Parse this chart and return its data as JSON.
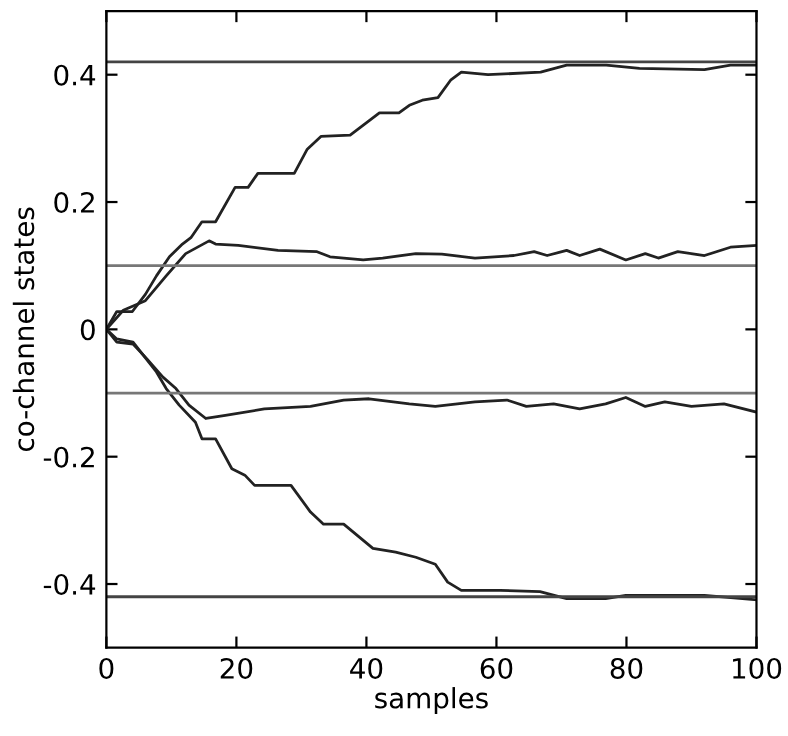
{
  "chart_data": {
    "type": "line",
    "xlabel": "samples",
    "ylabel": "co-channel states",
    "xlim": [
      0,
      100
    ],
    "ylim": [
      -0.5,
      0.5
    ],
    "xticks": [
      0,
      20,
      40,
      60,
      80,
      100
    ],
    "yticks": [
      {
        "value": -0.4,
        "label": "-0.4"
      },
      {
        "value": -0.2,
        "label": "-0.2"
      },
      0,
      0.2,
      0.4
    ],
    "grid": false,
    "legend": false,
    "marker": "none",
    "line_style": "solid",
    "series": [
      {
        "color": "#222222",
        "x": [
          0,
          1.6,
          4,
          6,
          7.7,
          9.7,
          11.7,
          13,
          14.7,
          16.8,
          19.8,
          21.8,
          23.3,
          28.9,
          30.9,
          33,
          37.5,
          42,
          45,
          46.6,
          48.6,
          51,
          53,
          54.6,
          58.7,
          66.8,
          70.8,
          76.9,
          82,
          92,
          96,
          100
        ],
        "values": [
          0,
          0.028,
          0.028,
          0.055,
          0.084,
          0.114,
          0.134,
          0.144,
          0.169,
          0.169,
          0.223,
          0.223,
          0.245,
          0.245,
          0.283,
          0.303,
          0.305,
          0.34,
          0.34,
          0.352,
          0.36,
          0.364,
          0.392,
          0.404,
          0.4,
          0.404,
          0.415,
          0.415,
          0.41,
          0.408,
          0.415,
          0.415
        ]
      },
      {
        "color": "#222222",
        "x": [
          0,
          2.6,
          6,
          9.2,
          12.2,
          15.8,
          16.8,
          20.3,
          26.4,
          32.4,
          34.4,
          39.5,
          42.5,
          47.6,
          51.6,
          56.7,
          62.7,
          65.8,
          67.8,
          70.8,
          72.8,
          75.9,
          79.9,
          82.9,
          84.9,
          87.9,
          92,
          96,
          100
        ],
        "values": [
          0,
          0.03,
          0.045,
          0.084,
          0.119,
          0.139,
          0.134,
          0.132,
          0.124,
          0.122,
          0.114,
          0.109,
          0.112,
          0.119,
          0.118,
          0.112,
          0.116,
          0.122,
          0.116,
          0.124,
          0.116,
          0.126,
          0.109,
          0.119,
          0.112,
          0.122,
          0.116,
          0.129,
          0.132
        ]
      },
      {
        "color": "#222222",
        "x": [
          0,
          1.6,
          4.1,
          6.2,
          8.7,
          10.7,
          12.7,
          15.3,
          18.3,
          24.3,
          31.4,
          36.5,
          40.4,
          46.6,
          50.6,
          56.7,
          61.6,
          64.6,
          68.8,
          72.8,
          76.8,
          79.9,
          82.9,
          85.9,
          90,
          95,
          100
        ],
        "values": [
          0,
          -0.02,
          -0.023,
          -0.046,
          -0.075,
          -0.093,
          -0.119,
          -0.14,
          -0.135,
          -0.125,
          -0.121,
          -0.111,
          -0.109,
          -0.117,
          -0.121,
          -0.114,
          -0.111,
          -0.121,
          -0.117,
          -0.125,
          -0.117,
          -0.107,
          -0.121,
          -0.114,
          -0.121,
          -0.117,
          -0.13
        ]
      },
      {
        "color": "#222222",
        "x": [
          0,
          1.6,
          4.1,
          5.7,
          7.7,
          9.2,
          11.2,
          13.7,
          14.7,
          16.8,
          19.3,
          21.3,
          22.8,
          28.4,
          31.4,
          33.4,
          36.5,
          41,
          44.5,
          47.6,
          50.6,
          52.5,
          54.6,
          60.6,
          66.7,
          70.8,
          76.8,
          79.9,
          92,
          100
        ],
        "values": [
          0,
          -0.015,
          -0.02,
          -0.041,
          -0.067,
          -0.093,
          -0.119,
          -0.146,
          -0.172,
          -0.172,
          -0.219,
          -0.229,
          -0.245,
          -0.245,
          -0.287,
          -0.306,
          -0.306,
          -0.344,
          -0.35,
          -0.358,
          -0.369,
          -0.397,
          -0.41,
          -0.41,
          -0.412,
          -0.423,
          -0.423,
          -0.418,
          -0.418,
          -0.425
        ]
      }
    ],
    "ref_lines": [
      {
        "axis": "y",
        "value": 0.42,
        "color": "#444444"
      },
      {
        "axis": "y",
        "value": 0.1,
        "color": "#777777"
      },
      {
        "axis": "y",
        "value": -0.1,
        "color": "#777777"
      },
      {
        "axis": "y",
        "value": -0.42,
        "color": "#444444"
      }
    ]
  }
}
